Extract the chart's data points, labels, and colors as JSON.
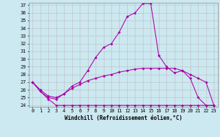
{
  "x": [
    0,
    1,
    2,
    3,
    4,
    5,
    6,
    7,
    8,
    9,
    10,
    11,
    12,
    13,
    14,
    15,
    16,
    17,
    18,
    19,
    20,
    21,
    22,
    23
  ],
  "line1": [
    27.0,
    25.8,
    24.8,
    24.0,
    24.0,
    24.0,
    24.0,
    24.0,
    24.0,
    24.0,
    24.0,
    24.0,
    24.0,
    24.0,
    24.0,
    24.0,
    24.0,
    24.0,
    24.0,
    24.0,
    24.0,
    24.0,
    24.0,
    24.0
  ],
  "line2": [
    27.0,
    25.8,
    25.0,
    24.8,
    25.5,
    26.5,
    27.0,
    28.5,
    30.2,
    31.5,
    32.0,
    33.5,
    35.5,
    36.0,
    37.2,
    37.2,
    30.5,
    29.0,
    28.2,
    28.5,
    27.5,
    25.0,
    24.0,
    24.0
  ],
  "line3": [
    27.0,
    26.0,
    25.2,
    25.0,
    25.5,
    26.2,
    26.7,
    27.2,
    27.5,
    27.8,
    28.0,
    28.3,
    28.5,
    28.7,
    28.8,
    28.8,
    28.8,
    28.8,
    28.8,
    28.5,
    28.0,
    27.5,
    27.0,
    24.0
  ],
  "ylim_min": 24,
  "ylim_max": 37,
  "yticks": [
    24,
    25,
    26,
    27,
    28,
    29,
    30,
    31,
    32,
    33,
    34,
    35,
    36,
    37
  ],
  "xticks": [
    0,
    1,
    2,
    3,
    4,
    5,
    6,
    7,
    8,
    9,
    10,
    11,
    12,
    13,
    14,
    15,
    16,
    17,
    18,
    19,
    20,
    21,
    22,
    23
  ],
  "line_color": "#aa00aa",
  "bg_color": "#cce8f0",
  "grid_color": "#bbbbbb",
  "xlabel": "Windchill (Refroidissement éolien,°C)",
  "marker": "D",
  "markersize": 1.8,
  "linewidth": 0.8,
  "label_fontsize": 5.5,
  "tick_fontsize": 5.0
}
